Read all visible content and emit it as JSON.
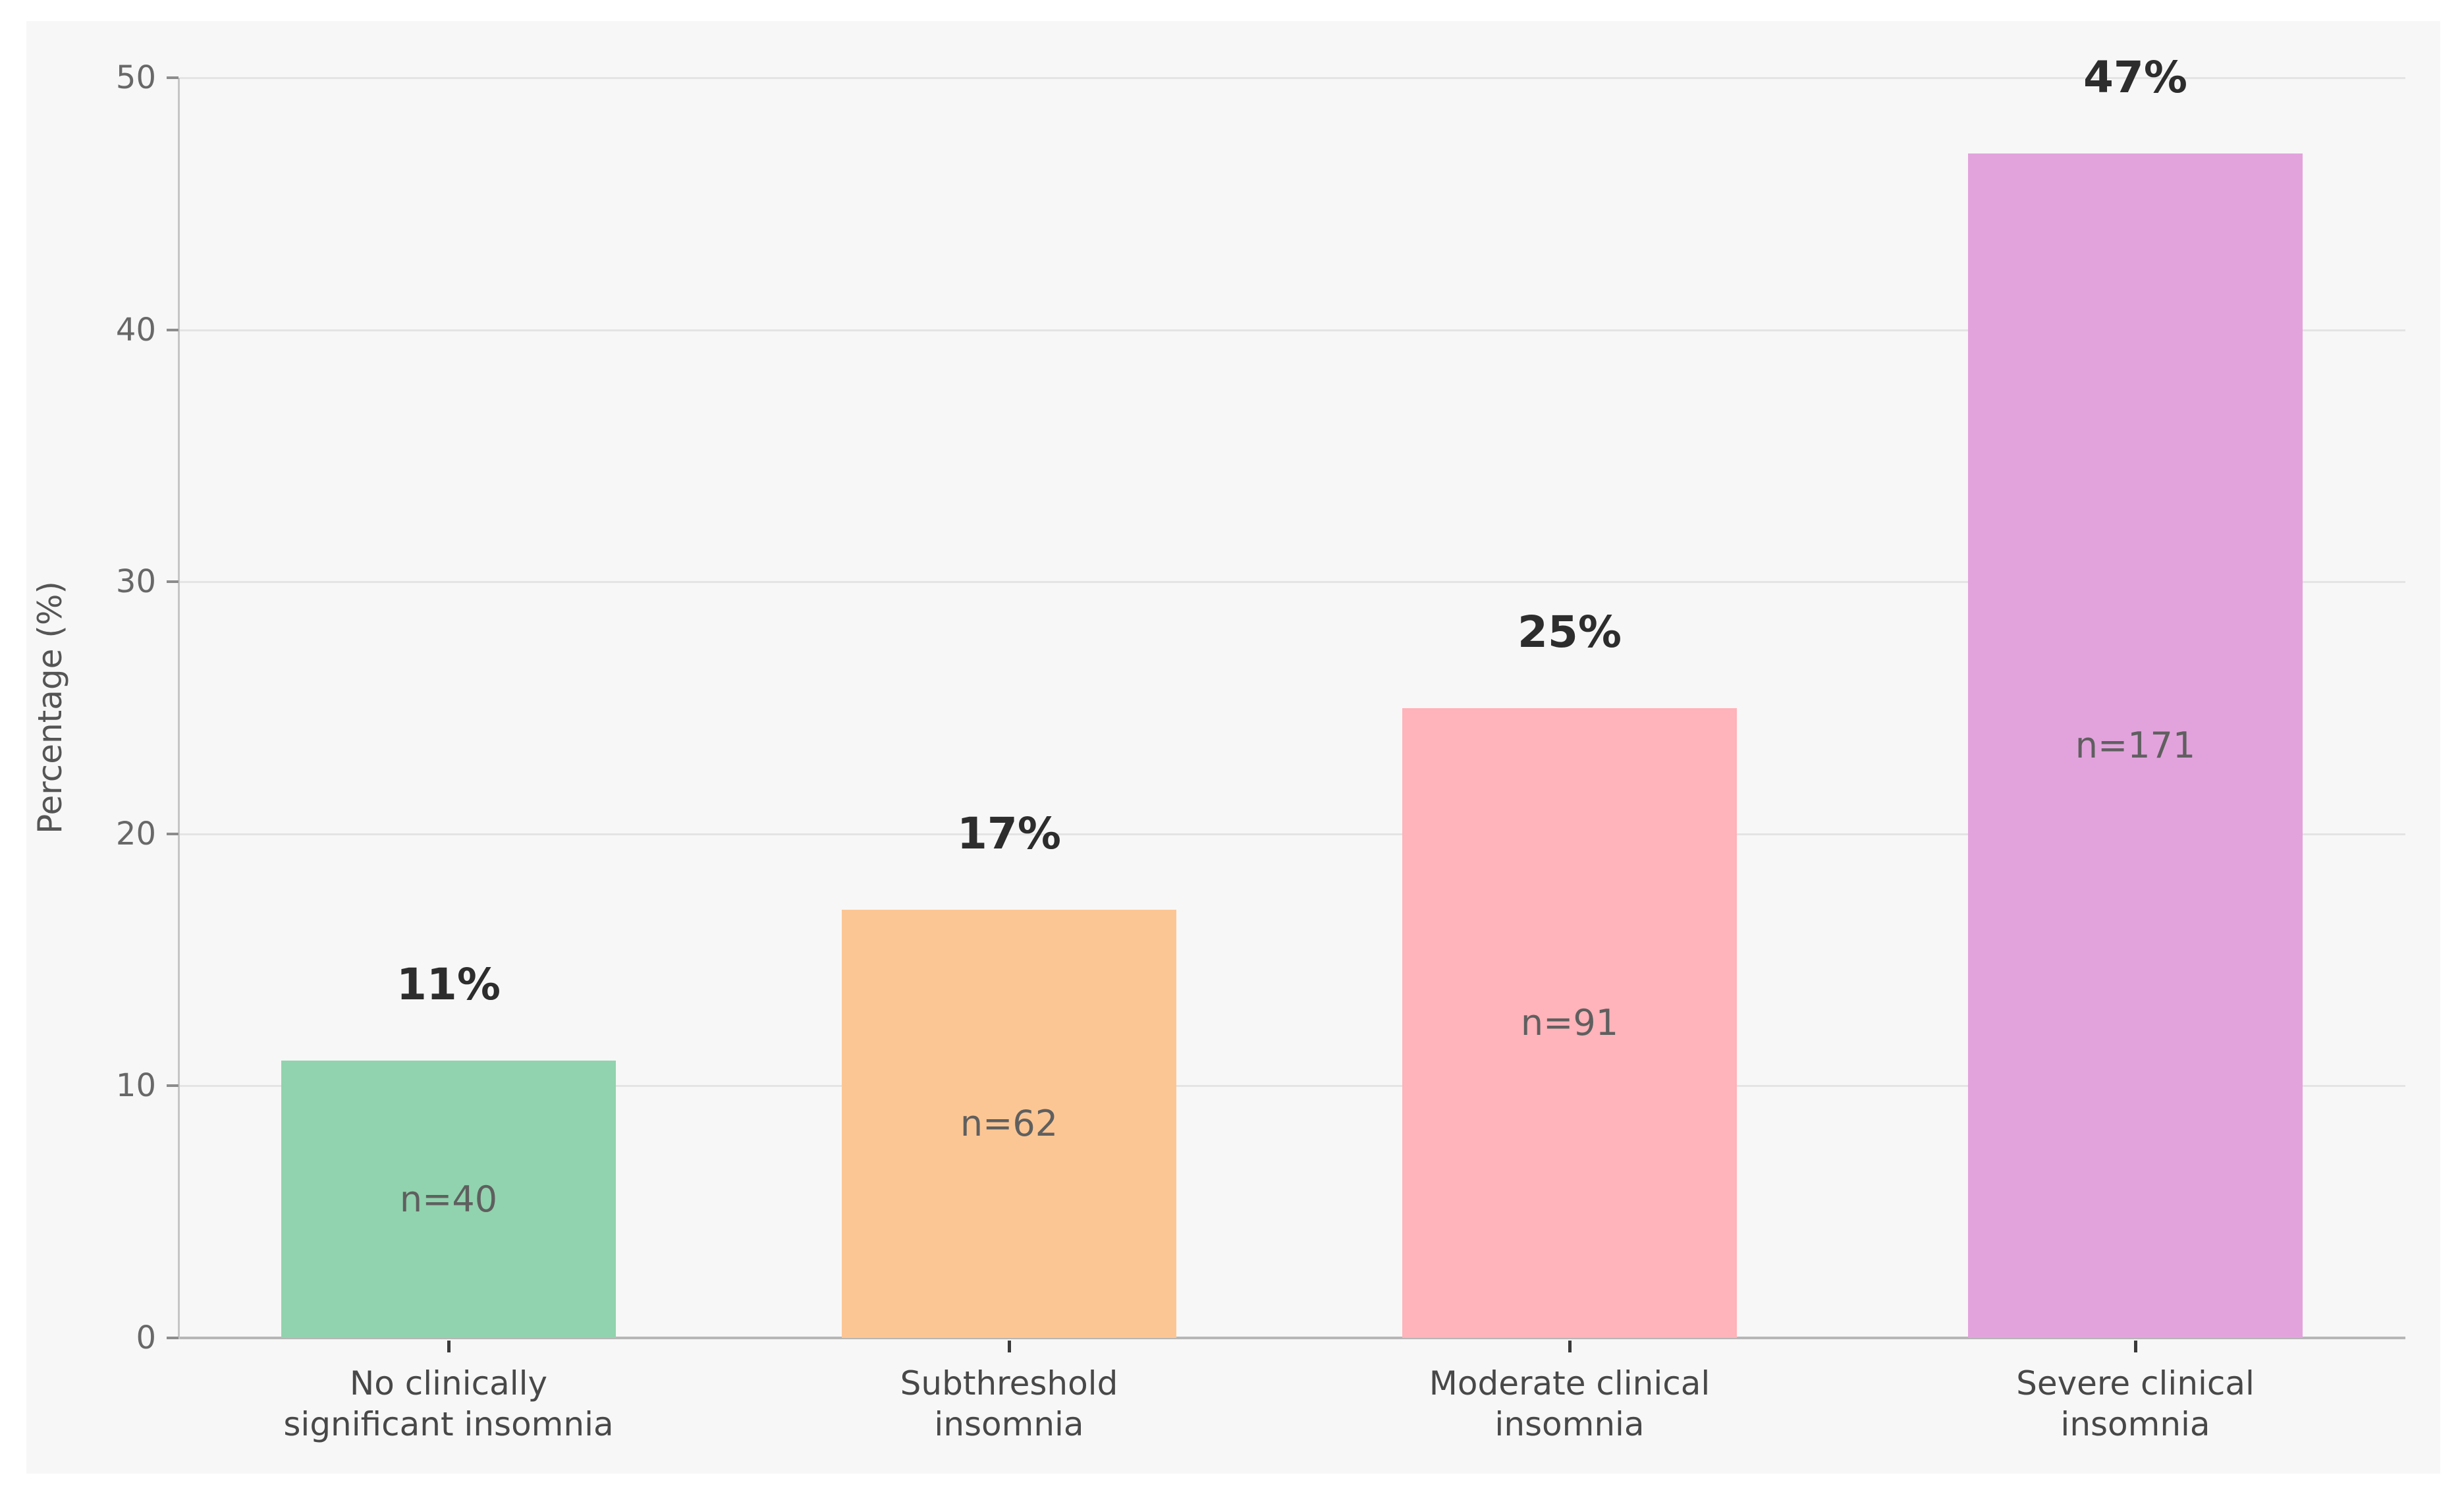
{
  "chart_data": {
    "type": "bar",
    "title": "",
    "xlabel": "",
    "ylabel": "Percentage (%)",
    "categories": [
      "No clinically\nsignificant insomnia",
      "Subthreshold\ninsomnia",
      "Moderate clinical\ninsomnia",
      "Severe clinical\ninsomnia"
    ],
    "values": [
      11,
      17,
      25,
      47
    ],
    "value_labels": [
      "11%",
      "17%",
      "25%",
      "47%"
    ],
    "n_labels": [
      "n=40",
      "n=62",
      "n=91",
      "n=171"
    ],
    "n_values": [
      40,
      62,
      91,
      171
    ],
    "yticks": [
      0,
      10,
      20,
      30,
      40,
      50
    ],
    "ylim": [
      0,
      50
    ],
    "grid": true,
    "legend": "none",
    "bar_colors": [
      "#91d3ae",
      "#fcc694",
      "#ffb3ba",
      "#e2a3dc"
    ],
    "panel_background": "#f7f7f7",
    "gridline_color": "#e4e4e4",
    "axis_line_color": "#b6b6b6",
    "value_label_color": "#2d2d2d",
    "n_label_color": "#5f5f5f",
    "tick_label_color": "#686868",
    "category_label_color": "#484848"
  }
}
